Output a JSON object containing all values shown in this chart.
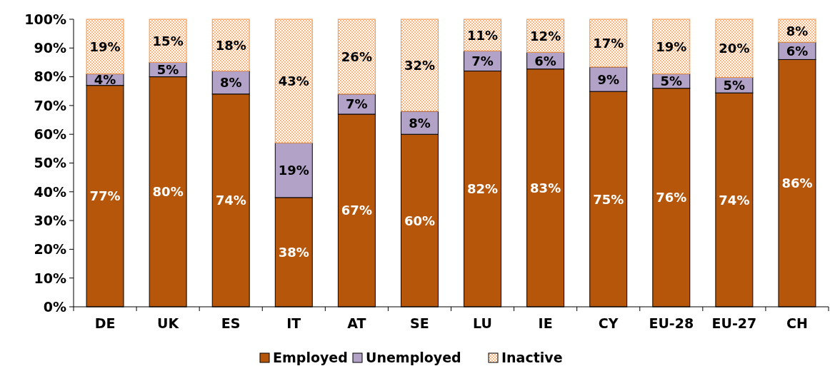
{
  "chart_data": {
    "type": "bar",
    "stacked": true,
    "categories": [
      "DE",
      "UK",
      "ES",
      "IT",
      "AT",
      "SE",
      "LU",
      "IE",
      "CY",
      "EU-28",
      "EU-27",
      "CH"
    ],
    "series": [
      {
        "name": "Employed",
        "color": "#b5560a",
        "values": [
          77,
          80,
          74,
          38,
          67,
          60,
          82,
          82.7,
          74.9,
          76,
          74.4,
          86
        ],
        "value_labels": [
          "77%",
          "80%",
          "74%",
          "38%",
          "67%",
          "60%",
          "82%",
          "83%",
          "75%",
          "76%",
          "74%",
          "86%"
        ]
      },
      {
        "name": "Unemployed",
        "color": "#b3a2c7",
        "values": [
          4,
          5,
          8,
          19,
          7,
          8,
          7,
          5.8,
          8.5,
          5,
          5.4,
          6
        ],
        "value_labels": [
          "4%",
          "5%",
          "8%",
          "19%",
          "7%",
          "8%",
          "7%",
          "6%",
          "9%",
          "5%",
          "5%",
          "6%"
        ]
      },
      {
        "name": "Inactive",
        "color": "#f79646",
        "values": [
          19,
          15,
          18,
          43,
          26,
          32,
          11,
          11.5,
          16.6,
          19,
          20.2,
          8
        ],
        "value_labels": [
          "19%",
          "15%",
          "18%",
          "43%",
          "26%",
          "32%",
          "11%",
          "12%",
          "17%",
          "19%",
          "20%",
          "8%"
        ]
      }
    ],
    "ylim": [
      0,
      100
    ],
    "yticks": [
      {
        "value": 0,
        "label": "0%"
      },
      {
        "value": 10,
        "label": "10%"
      },
      {
        "value": 20,
        "label": "20%"
      },
      {
        "value": 30,
        "label": "30%"
      },
      {
        "value": 40,
        "label": "40%"
      },
      {
        "value": 50,
        "label": "50%"
      },
      {
        "value": 60,
        "label": "60%"
      },
      {
        "value": 70,
        "label": "70%"
      },
      {
        "value": 80,
        "label": "80%"
      },
      {
        "value": 90,
        "label": "90%"
      },
      {
        "value": 100,
        "label": "100%"
      }
    ],
    "grid": false,
    "legend": "bottom"
  }
}
